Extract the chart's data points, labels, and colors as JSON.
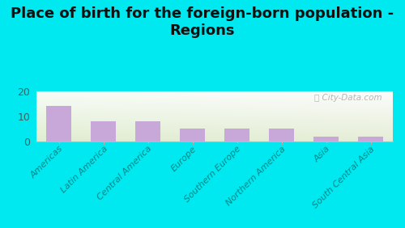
{
  "title": "Place of birth for the foreign-born population -\nRegions",
  "categories": [
    "Americas",
    "Latin America",
    "Central America",
    "Europe",
    "Southern Europe",
    "Northern America",
    "Asia",
    "South Central Asia"
  ],
  "values": [
    14,
    8,
    8,
    5,
    5,
    5,
    2,
    2
  ],
  "bar_color": "#c8a8d8",
  "bg_outer": "#00e8f0",
  "ylim": [
    0,
    20
  ],
  "yticks": [
    0,
    10,
    20
  ],
  "title_fontsize": 13,
  "tick_fontsize": 8,
  "watermark": "City-Data.com"
}
